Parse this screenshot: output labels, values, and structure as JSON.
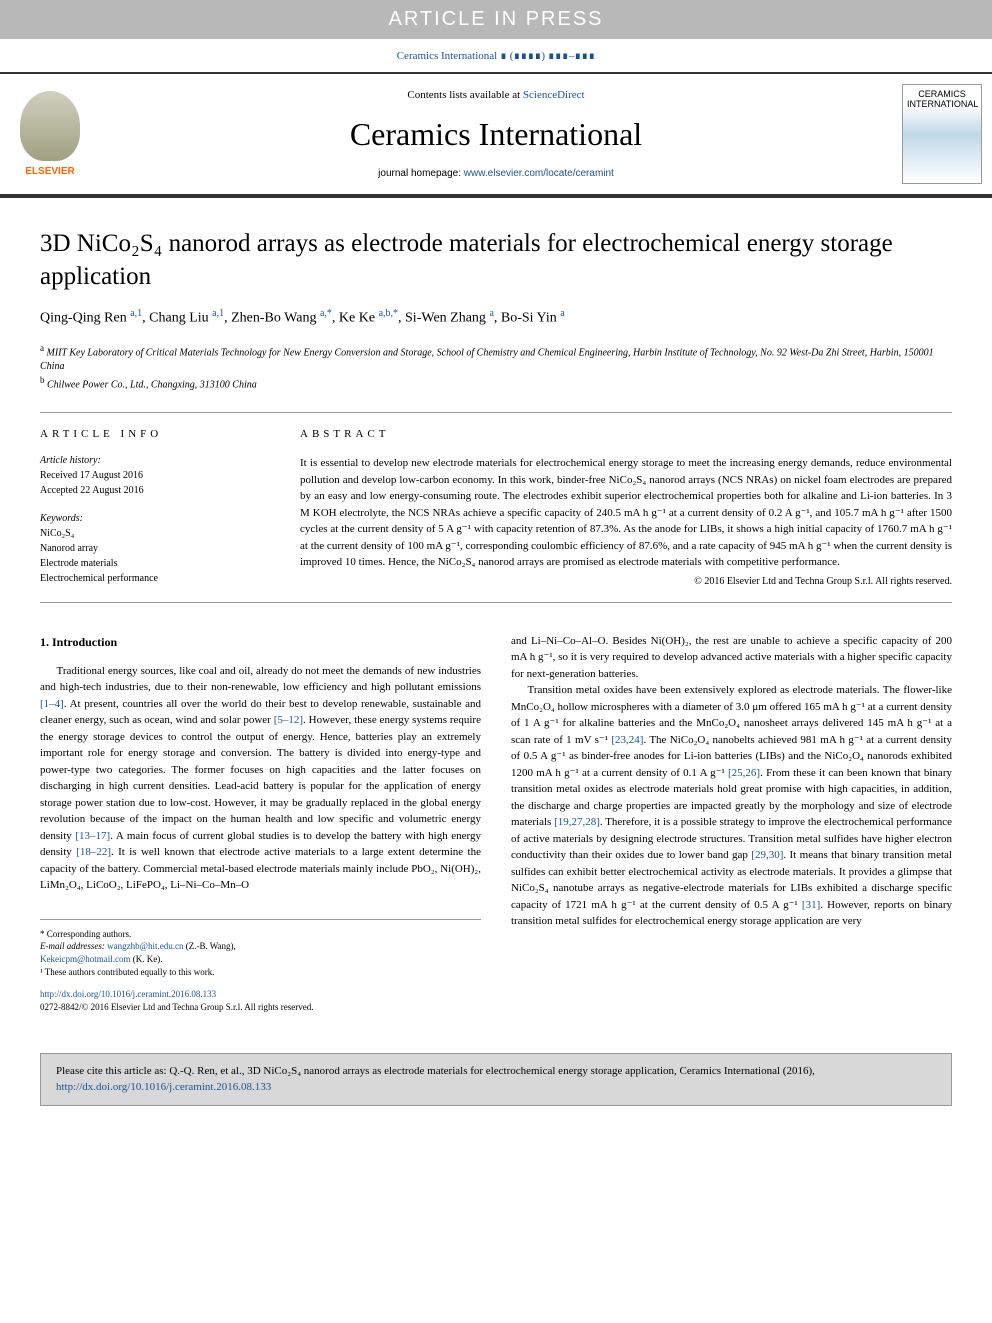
{
  "banner": {
    "text": "ARTICLE IN PRESS"
  },
  "journal_ref": {
    "text": "Ceramics International ∎ (∎∎∎∎) ∎∎∎–∎∎∎"
  },
  "header": {
    "contents_line_prefix": "Contents lists available at ",
    "contents_link": "ScienceDirect",
    "journal_name": "Ceramics International",
    "homepage_prefix": "journal homepage: ",
    "homepage_url": "www.elsevier.com/locate/ceramint",
    "elsevier_label": "ELSEVIER",
    "cover_label": "CERAMICS INTERNATIONAL"
  },
  "article": {
    "title": "3D NiCo₂S₄ nanorod arrays as electrode materials for electrochemical energy storage application",
    "authors": [
      {
        "name": "Qing-Qing Ren",
        "aff": "a,1"
      },
      {
        "name": "Chang Liu",
        "aff": "a,1"
      },
      {
        "name": "Zhen-Bo Wang",
        "aff": "a,*"
      },
      {
        "name": "Ke Ke",
        "aff": "a,b,*"
      },
      {
        "name": "Si-Wen Zhang",
        "aff": "a"
      },
      {
        "name": "Bo-Si Yin",
        "aff": "a"
      }
    ],
    "affiliations": [
      {
        "sup": "a",
        "text": "MIIT Key Laboratory of Critical Materials Technology for New Energy Conversion and Storage, School of Chemistry and Chemical Engineering, Harbin Institute of Technology, No. 92 West-Da Zhi Street, Harbin, 150001 China"
      },
      {
        "sup": "b",
        "text": "Chilwee Power Co., Ltd., Changxing, 313100 China"
      }
    ]
  },
  "info": {
    "heading": "ARTICLE INFO",
    "history_label": "Article history:",
    "received": "Received 17 August 2016",
    "accepted": "Accepted 22 August 2016",
    "keywords_label": "Keywords:",
    "keywords": [
      "NiCo₂S₄",
      "Nanorod array",
      "Electrode materials",
      "Electrochemical performance"
    ]
  },
  "abstract": {
    "heading": "ABSTRACT",
    "text": "It is essential to develop new electrode materials for electrochemical energy storage to meet the increasing energy demands, reduce environmental pollution and develop low-carbon economy. In this work, binder-free NiCo₂S₄ nanorod arrays (NCS NRAs) on nickel foam electrodes are prepared by an easy and low energy-consuming route. The electrodes exhibit superior electrochemical properties both for alkaline and Li-ion batteries. In 3 M KOH electrolyte, the NCS NRAs achieve a specific capacity of 240.5 mA h g⁻¹ at a current density of 0.2 A g⁻¹, and 105.7 mA h g⁻¹ after 1500 cycles at the current density of 5 A g⁻¹ with capacity retention of 87.3%. As the anode for LIBs, it shows a high initial capacity of 1760.7 mA h g⁻¹ at the current density of 100 mA g⁻¹, corresponding coulombic efficiency of 87.6%, and a rate capacity of 945 mA h g⁻¹ when the current density is improved 10 times. Hence, the NiCo₂S₄ nanorod arrays are promised as electrode materials with competitive performance.",
    "copyright": "© 2016 Elsevier Ltd and Techna Group S.r.l. All rights reserved."
  },
  "sections": {
    "intro_title": "1. Introduction",
    "col1": {
      "p1_a": "Traditional energy sources, like coal and oil, already do not meet the demands of new industries and high-tech industries, due to their non-renewable, low efficiency and high pollutant emissions ",
      "ref1": "[1–4]",
      "p1_b": ". At present, countries all over the world do their best to develop renewable, sustainable and cleaner energy, such as ocean, wind and solar power ",
      "ref2": "[5–12]",
      "p1_c": ". However, these energy systems require the energy storage devices to control the output of energy. Hence, batteries play an extremely important role for energy storage and conversion. The battery is divided into energy-type and power-type two categories. The former focuses on high capacities and the latter focuses on discharging in high current densities. Lead-acid battery is popular for the application of energy storage power station due to low-cost. However, it may be gradually replaced in the global energy revolution because of the impact on the human health and low specific and volumetric energy density ",
      "ref3": "[13–17]",
      "p1_d": ". A main focus of current global studies is to develop the battery with high energy density ",
      "ref4": "[18–22]",
      "p1_e": ". It is well known that electrode active materials to a large extent determine the capacity of the battery. Commercial metal-based electrode materials mainly include PbO₂, Ni(OH)₂, LiMn₂O₄, LiCoO₂, LiFePO₄, Li–Ni–Co–Mn–O"
    },
    "col2": {
      "p1": "and Li–Ni–Co–Al–O. Besides Ni(OH)₂, the rest are unable to achieve a specific capacity of 200 mA h g⁻¹, so it is very required to develop advanced active materials with a higher specific capacity for next-generation batteries.",
      "p2_a": "Transition metal oxides have been extensively explored as electrode materials. The flower-like MnCo₂O₄ hollow microspheres with a diameter of 3.0 μm offered 165 mA h g⁻¹ at a current density of 1 A g⁻¹ for alkaline batteries and the MnCo₂O₄ nanosheet arrays delivered 145 mA h g⁻¹ at a scan rate of 1 mV s⁻¹ ",
      "ref1": "[23,24]",
      "p2_b": ". The NiCo₂O₄ nanobelts achieved 981 mA h g⁻¹ at a current density of 0.5 A g⁻¹ as binder-free anodes for Li-ion batteries (LIBs) and the NiCo₂O₄ nanorods exhibited 1200 mA h g⁻¹ at a current density of 0.1 A g⁻¹ ",
      "ref2": "[25,26]",
      "p2_c": ". From these it can been known that binary transition metal oxides as electrode materials hold great promise with high capacities, in addition, the discharge and charge properties are impacted greatly by the morphology and size of electrode materials ",
      "ref3": "[19,27,28]",
      "p2_d": ". Therefore, it is a possible strategy to improve the electrochemical performance of active materials by designing electrode structures. Transition metal sulfides have higher electron conductivity than their oxides due to lower band gap ",
      "ref4": "[29,30]",
      "p2_e": ". It means that binary transition metal sulfides can exhibit better electrochemical activity as electrode materials. It provides a glimpse that NiCo₂S₄ nanotube arrays as negative-electrode materials for LIBs exhibited a discharge specific capacity of 1721 mA h g⁻¹ at the current density of 0.5 A g⁻¹ ",
      "ref5": "[31]",
      "p2_f": ". However, reports on binary transition metal sulfides for electrochemical energy storage application are very"
    }
  },
  "footnotes": {
    "corr": "* Corresponding authors.",
    "email_label": "E-mail addresses: ",
    "email1": "wangzhb@hit.edu.cn",
    "email1_name": " (Z.-B. Wang),",
    "email2": "Kekeicpm@hotmail.com",
    "email2_name": " (K. Ke).",
    "equal": "¹ These authors contributed equally to this work.",
    "doi": "http://dx.doi.org/10.1016/j.ceramint.2016.08.133",
    "issn": "0272-8842/© 2016 Elsevier Ltd and Techna Group S.r.l. All rights reserved."
  },
  "citebox": {
    "prefix": "Please cite this article as: Q.-Q. Ren, et al., 3D NiCo₂S₄ nanorod arrays as electrode materials for electrochemical energy storage application, Ceramics International (2016), ",
    "doi": "http://dx.doi.org/10.1016/j.ceramint.2016.08.133"
  },
  "colors": {
    "link": "#1a5490",
    "banner_bg": "#b8b8b8",
    "elsevier_orange": "#ff6600",
    "citebox_bg": "#d8d8d8"
  }
}
